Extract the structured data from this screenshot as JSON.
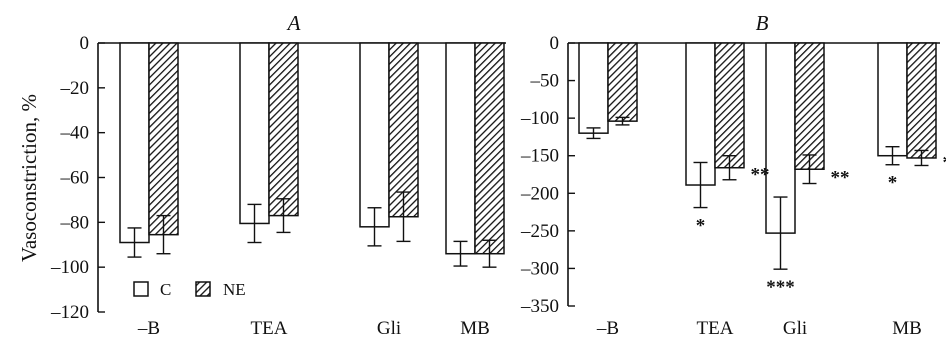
{
  "figure": {
    "ylabel": "Vasoconstriction, %",
    "legend": [
      {
        "label": "C",
        "fill": "white"
      },
      {
        "label": "NE",
        "fill": "hatched"
      }
    ],
    "colors": {
      "bar_stroke": "#111111",
      "hatch": "#111111",
      "background": "#ffffff"
    }
  },
  "chart_data": [
    {
      "type": "bar",
      "title": "A",
      "categories": [
        "–B",
        "TEA",
        "Gli",
        "MB"
      ],
      "ylim": [
        -120,
        0
      ],
      "yticks": [
        0,
        -20,
        -40,
        -60,
        -80,
        -100,
        -120
      ],
      "ytick_labels": [
        "0",
        "–20",
        "–40",
        "–60",
        "–80",
        "–100",
        "–120"
      ],
      "series": [
        {
          "name": "C",
          "values": [
            -89,
            -80.5,
            -82,
            -94
          ],
          "errors": [
            6.5,
            8.5,
            8.5,
            5.5
          ],
          "annotations": [
            "",
            "",
            "",
            ""
          ]
        },
        {
          "name": "NE",
          "values": [
            -85.5,
            -77,
            -77.5,
            -94
          ],
          "errors": [
            8.5,
            7.5,
            11,
            6
          ],
          "annotations": [
            "",
            "",
            "",
            ""
          ]
        }
      ]
    },
    {
      "type": "bar",
      "title": "B",
      "categories": [
        "–B",
        "TEA",
        "Gli",
        "MB"
      ],
      "ylim": [
        -350,
        0
      ],
      "yticks": [
        0,
        -50,
        -100,
        -150,
        -200,
        -250,
        -300,
        -350
      ],
      "ytick_labels": [
        "0",
        "–50",
        "–100",
        "–150",
        "–200",
        "–250",
        "–300",
        "–350"
      ],
      "series": [
        {
          "name": "C",
          "values": [
            -120,
            -189,
            -253,
            -150
          ],
          "errors": [
            7,
            30,
            48,
            12
          ],
          "annotations": [
            "",
            "*",
            "***",
            "*"
          ]
        },
        {
          "name": "NE",
          "values": [
            -104,
            -166,
            -168,
            -153
          ],
          "errors": [
            5,
            16,
            19,
            10
          ],
          "annotations": [
            "",
            "**",
            "**",
            "**"
          ]
        }
      ]
    }
  ]
}
